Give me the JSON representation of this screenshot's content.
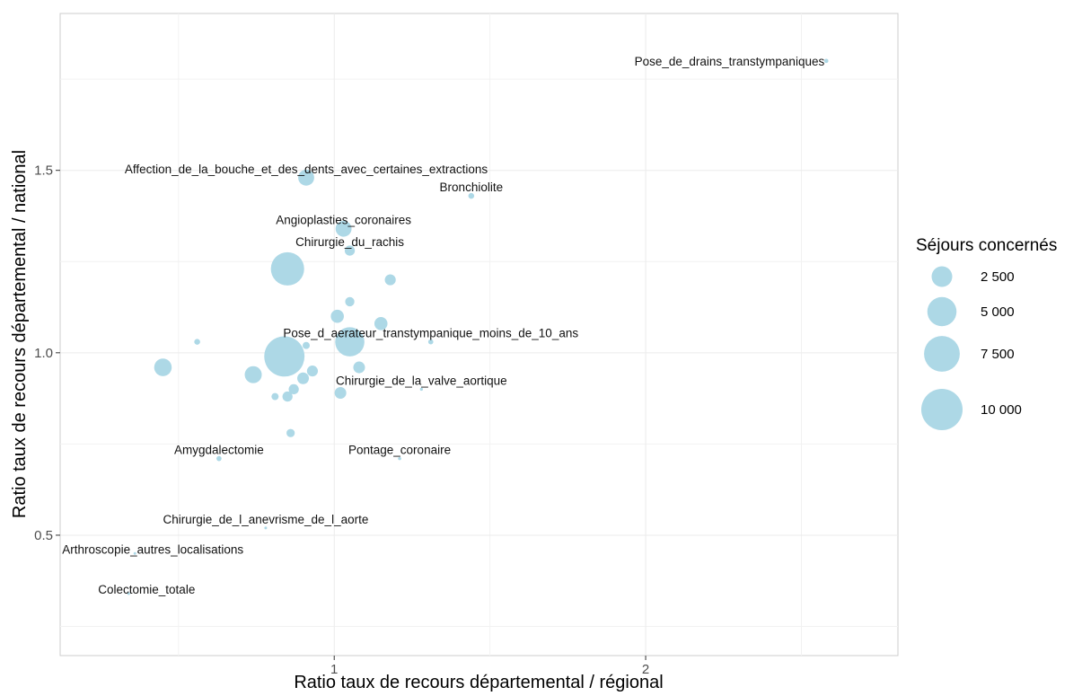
{
  "chart_data": {
    "type": "scatter",
    "title": "",
    "xlabel": "Ratio taux de recours départemental / régional",
    "ylabel": "Ratio taux de recours départemental / national",
    "xlim": [
      0.12,
      2.81
    ],
    "ylim": [
      0.17,
      1.93
    ],
    "x_ticks": [
      {
        "value": 1,
        "label": "1"
      },
      {
        "value": 2,
        "label": "2"
      }
    ],
    "y_ticks": [
      {
        "value": 0.5,
        "label": "0.5"
      },
      {
        "value": 1.0,
        "label": "1.0"
      },
      {
        "value": 1.5,
        "label": "1.5"
      }
    ],
    "x_minor_gridlines": [
      0.5,
      1.5,
      2.5
    ],
    "y_minor_gridlines": [
      0.25,
      0.75,
      1.25,
      1.75
    ],
    "grid": true,
    "point_color": "#add8e6",
    "legend": {
      "title": "Séjours concernés",
      "placement": "right",
      "entries": [
        {
          "value": 2500,
          "label": "2 500"
        },
        {
          "value": 5000,
          "label": "5 000"
        },
        {
          "value": 7500,
          "label": "7 500"
        },
        {
          "value": 10000,
          "label": "10 000"
        }
      ]
    },
    "points": [
      {
        "x": 2.58,
        "y": 1.8,
        "size": 100,
        "label": "Pose_de_drains_transtympaniques"
      },
      {
        "x": 0.91,
        "y": 1.48,
        "size": 1500,
        "label": "Affection_de_la_bouche_et_des_dents_avec_certaines_extractions"
      },
      {
        "x": 1.44,
        "y": 1.43,
        "size": 200,
        "label": "Bronchiolite"
      },
      {
        "x": 1.03,
        "y": 1.34,
        "size": 1500,
        "label": "Angioplasties_coronaires"
      },
      {
        "x": 1.05,
        "y": 1.28,
        "size": 600,
        "label": "Chirurgie_du_rachis"
      },
      {
        "x": 1.31,
        "y": 1.03,
        "size": 150,
        "label": "Pose_d_aerateur_transtympanique_moins_de_10_ans"
      },
      {
        "x": 1.28,
        "y": 0.9,
        "size": 50,
        "label": "Chirurgie_de_la_valve_aortique"
      },
      {
        "x": 0.63,
        "y": 0.71,
        "size": 150,
        "label": "Amygdalectomie"
      },
      {
        "x": 1.21,
        "y": 0.71,
        "size": 60,
        "label": "Pontage_coronaire"
      },
      {
        "x": 0.78,
        "y": 0.52,
        "size": 30,
        "label": "Chirurgie_de_l_anevrisme_de_l_aorte"
      },
      {
        "x": 0.36,
        "y": 0.45,
        "size": 30,
        "label": "Arthroscopie_autres_localisations"
      },
      {
        "x": 0.34,
        "y": 0.34,
        "size": 30,
        "label": "Colectomie_totale"
      },
      {
        "x": 0.85,
        "y": 1.23,
        "size": 6500,
        "label": ""
      },
      {
        "x": 1.18,
        "y": 1.2,
        "size": 700,
        "label": ""
      },
      {
        "x": 1.05,
        "y": 1.14,
        "size": 500,
        "label": ""
      },
      {
        "x": 1.01,
        "y": 1.1,
        "size": 1000,
        "label": ""
      },
      {
        "x": 1.15,
        "y": 1.08,
        "size": 1000,
        "label": ""
      },
      {
        "x": 1.05,
        "y": 1.03,
        "size": 5000,
        "label": ""
      },
      {
        "x": 0.56,
        "y": 1.03,
        "size": 200,
        "label": ""
      },
      {
        "x": 0.91,
        "y": 1.02,
        "size": 300,
        "label": ""
      },
      {
        "x": 0.45,
        "y": 0.96,
        "size": 1800,
        "label": ""
      },
      {
        "x": 0.84,
        "y": 0.99,
        "size": 9500,
        "label": ""
      },
      {
        "x": 1.08,
        "y": 0.96,
        "size": 800,
        "label": ""
      },
      {
        "x": 0.93,
        "y": 0.95,
        "size": 700,
        "label": ""
      },
      {
        "x": 0.9,
        "y": 0.93,
        "size": 800,
        "label": ""
      },
      {
        "x": 0.74,
        "y": 0.94,
        "size": 1700,
        "label": ""
      },
      {
        "x": 1.02,
        "y": 0.89,
        "size": 800,
        "label": ""
      },
      {
        "x": 0.87,
        "y": 0.9,
        "size": 600,
        "label": ""
      },
      {
        "x": 0.85,
        "y": 0.88,
        "size": 600,
        "label": ""
      },
      {
        "x": 0.81,
        "y": 0.88,
        "size": 300,
        "label": ""
      },
      {
        "x": 0.86,
        "y": 0.78,
        "size": 400,
        "label": ""
      }
    ]
  }
}
